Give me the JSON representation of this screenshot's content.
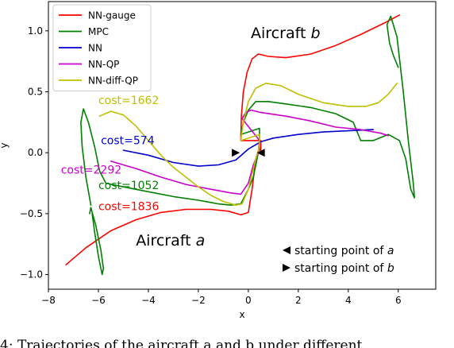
{
  "chart_data": {
    "type": "line",
    "title": "",
    "xlabel": "x",
    "ylabel": "y",
    "xlim": [
      -8,
      7.5
    ],
    "ylim": [
      -1.12,
      1.24
    ],
    "xticks": [
      -8,
      -6,
      -4,
      -2,
      0,
      2,
      4,
      6
    ],
    "yticks": [
      -1.0,
      -0.5,
      0.0,
      0.5,
      1.0
    ],
    "xtick_labels": [
      "−8",
      "−6",
      "−4",
      "−2",
      "0",
      "2",
      "4",
      "6"
    ],
    "ytick_labels": [
      "−1.0",
      "−0.5",
      "0.0",
      "0.5",
      "1.0"
    ],
    "grid": false,
    "legend_position": "top-left",
    "series": [
      {
        "name": "NN-gauge",
        "color": "#ff0000",
        "segments": [
          [
            [
              -7.3,
              -0.92
            ],
            [
              -6.5,
              -0.78
            ],
            [
              -5.5,
              -0.64
            ],
            [
              -4.5,
              -0.55
            ],
            [
              -3.5,
              -0.49
            ],
            [
              -2.5,
              -0.465
            ],
            [
              -1.5,
              -0.465
            ],
            [
              -0.8,
              -0.48
            ],
            [
              -0.3,
              -0.51
            ],
            [
              0.0,
              -0.49
            ],
            [
              0.15,
              -0.3
            ],
            [
              0.3,
              -0.05
            ],
            [
              0.45,
              0.05
            ],
            [
              0.5,
              0.0
            ],
            [
              0.5,
              0.1
            ],
            [
              -0.3,
              0.1
            ],
            [
              -0.28,
              0.3
            ],
            [
              -0.2,
              0.5
            ],
            [
              -0.05,
              0.66
            ],
            [
              0.15,
              0.77
            ],
            [
              0.4,
              0.81
            ],
            [
              0.8,
              0.79
            ],
            [
              1.5,
              0.78
            ],
            [
              2.5,
              0.81
            ],
            [
              3.5,
              0.88
            ],
            [
              4.5,
              0.97
            ],
            [
              5.5,
              1.07
            ],
            [
              6.05,
              1.13
            ]
          ]
        ]
      },
      {
        "name": "MPC",
        "color": "#008000",
        "segments": [
          [
            [
              -6.3,
              -0.43
            ],
            [
              -6.5,
              -0.2
            ],
            [
              -6.65,
              0.05
            ],
            [
              -6.7,
              0.25
            ],
            [
              -6.6,
              0.36
            ],
            [
              -6.4,
              0.25
            ],
            [
              -6.15,
              0.05
            ],
            [
              -5.95,
              -0.15
            ],
            [
              -5.7,
              -0.25
            ],
            [
              -5.0,
              -0.28
            ],
            [
              -4.0,
              -0.32
            ],
            [
              -3.0,
              -0.36
            ],
            [
              -2.0,
              -0.39
            ],
            [
              -1.2,
              -0.42
            ],
            [
              -0.7,
              -0.43
            ],
            [
              -0.3,
              -0.42
            ],
            [
              0.0,
              -0.3
            ],
            [
              0.2,
              -0.2
            ],
            [
              0.35,
              -0.05
            ],
            [
              0.45,
              0.05
            ],
            [
              0.45,
              0.2
            ],
            [
              -0.3,
              0.15
            ],
            [
              -0.2,
              0.25
            ],
            [
              0.0,
              0.35
            ],
            [
              0.3,
              0.42
            ],
            [
              0.8,
              0.42
            ],
            [
              1.5,
              0.4
            ],
            [
              2.5,
              0.37
            ],
            [
              3.5,
              0.32
            ],
            [
              4.2,
              0.25
            ],
            [
              4.5,
              0.1
            ],
            [
              5.0,
              0.1
            ],
            [
              5.6,
              0.15
            ],
            [
              6.05,
              0.1
            ],
            [
              6.3,
              -0.05
            ],
            [
              6.5,
              -0.3
            ],
            [
              6.65,
              -0.37
            ],
            [
              6.6,
              -0.25
            ],
            [
              6.4,
              0.1
            ],
            [
              6.2,
              0.5
            ],
            [
              5.95,
              0.95
            ],
            [
              5.7,
              1.12
            ],
            [
              5.55,
              1.05
            ],
            [
              5.65,
              0.9
            ],
            [
              5.8,
              0.8
            ],
            [
              5.9,
              0.75
            ],
            [
              6.0,
              0.7
            ]
          ],
          [
            [
              -6.25,
              -0.5
            ],
            [
              -6.15,
              -0.65
            ],
            [
              -6.0,
              -0.85
            ],
            [
              -5.85,
              -1.0
            ],
            [
              -5.8,
              -0.95
            ],
            [
              -5.9,
              -0.8
            ],
            [
              -6.1,
              -0.6
            ],
            [
              -6.3,
              -0.45
            ],
            [
              -6.35,
              -0.5
            ]
          ]
        ]
      },
      {
        "name": "NN",
        "color": "#0000cc",
        "segments": [
          [
            [
              -5.0,
              0.02
            ],
            [
              -4.0,
              -0.02
            ],
            [
              -3.0,
              -0.08
            ],
            [
              -2.0,
              -0.11
            ],
            [
              -1.2,
              -0.1
            ],
            [
              -0.5,
              -0.06
            ],
            [
              0.0,
              0.03
            ],
            [
              0.5,
              0.09
            ],
            [
              1.0,
              0.12
            ],
            [
              2.0,
              0.15
            ],
            [
              3.0,
              0.17
            ],
            [
              4.0,
              0.18
            ],
            [
              5.0,
              0.19
            ]
          ]
        ]
      },
      {
        "name": "NN-QP",
        "color": "#cc00cc",
        "segments": [
          [
            [
              -5.5,
              -0.07
            ],
            [
              -4.5,
              -0.13
            ],
            [
              -3.5,
              -0.2
            ],
            [
              -2.5,
              -0.26
            ],
            [
              -1.5,
              -0.3
            ],
            [
              -0.7,
              -0.33
            ],
            [
              -0.3,
              -0.34
            ],
            [
              0.0,
              -0.25
            ],
            [
              0.2,
              -0.1
            ],
            [
              0.4,
              0.0
            ],
            [
              0.45,
              0.1
            ],
            [
              -0.25,
              0.28
            ],
            [
              -0.1,
              0.33
            ],
            [
              0.1,
              0.35
            ],
            [
              0.5,
              0.33
            ],
            [
              1.5,
              0.3
            ],
            [
              2.5,
              0.26
            ],
            [
              3.5,
              0.21
            ],
            [
              4.5,
              0.19
            ],
            [
              5.3,
              0.16
            ],
            [
              5.6,
              0.14
            ]
          ]
        ]
      },
      {
        "name": "NN-diff-QP",
        "color": "#bfbf00",
        "segments": [
          [
            [
              -5.95,
              0.3
            ],
            [
              -5.5,
              0.34
            ],
            [
              -5.0,
              0.31
            ],
            [
              -4.5,
              0.22
            ],
            [
              -4.0,
              0.1
            ],
            [
              -3.5,
              -0.02
            ],
            [
              -3.0,
              -0.12
            ],
            [
              -2.5,
              -0.2
            ],
            [
              -2.0,
              -0.28
            ],
            [
              -1.5,
              -0.35
            ],
            [
              -1.0,
              -0.4
            ],
            [
              -0.5,
              -0.43
            ],
            [
              -0.25,
              -0.42
            ],
            [
              0.0,
              -0.3
            ],
            [
              0.3,
              -0.05
            ],
            [
              0.45,
              0.05
            ],
            [
              0.45,
              0.15
            ],
            [
              -0.3,
              0.1
            ],
            [
              -0.2,
              0.25
            ],
            [
              0.0,
              0.42
            ],
            [
              0.3,
              0.53
            ],
            [
              0.7,
              0.57
            ],
            [
              1.3,
              0.55
            ],
            [
              2.0,
              0.48
            ],
            [
              3.0,
              0.41
            ],
            [
              4.0,
              0.38
            ],
            [
              4.7,
              0.38
            ],
            [
              5.2,
              0.41
            ],
            [
              5.6,
              0.48
            ],
            [
              5.95,
              0.57
            ]
          ]
        ]
      }
    ],
    "annotations": [
      {
        "text": "Aircraft ",
        "italic": "b",
        "x": 0.1,
        "y": 0.94,
        "color": "#000000",
        "size": "large"
      },
      {
        "text": "Aircraft ",
        "italic": "a",
        "x": -4.5,
        "y": -0.76,
        "color": "#000000",
        "size": "large"
      },
      {
        "text": "cost=1662",
        "x": -6.0,
        "y": 0.4,
        "color": "#bfbf00",
        "size": "normal"
      },
      {
        "text": "cost=574",
        "x": -5.9,
        "y": 0.07,
        "color": "#0000cc",
        "size": "normal"
      },
      {
        "text": "cost=2292",
        "x": -7.5,
        "y": -0.17,
        "color": "#cc00cc",
        "size": "normal"
      },
      {
        "text": "cost=1052",
        "x": -6.0,
        "y": -0.3,
        "color": "#008000",
        "size": "normal"
      },
      {
        "text": "cost=1836",
        "x": -6.0,
        "y": -0.47,
        "color": "#ff0000",
        "size": "normal"
      }
    ],
    "start_markers": [
      {
        "aircraft": "a",
        "shape": "left-triangle",
        "x": 0.5,
        "y": 0.0
      },
      {
        "aircraft": "b",
        "shape": "right-triangle",
        "x": -0.5,
        "y": 0.0
      }
    ],
    "marker_legend": [
      {
        "shape": "left-triangle",
        "text": "starting point of ",
        "italic": "a"
      },
      {
        "shape": "right-triangle",
        "text": "starting point of ",
        "italic": "b"
      }
    ]
  },
  "caption": "4: Trajectories of the aircraft a and b under different"
}
